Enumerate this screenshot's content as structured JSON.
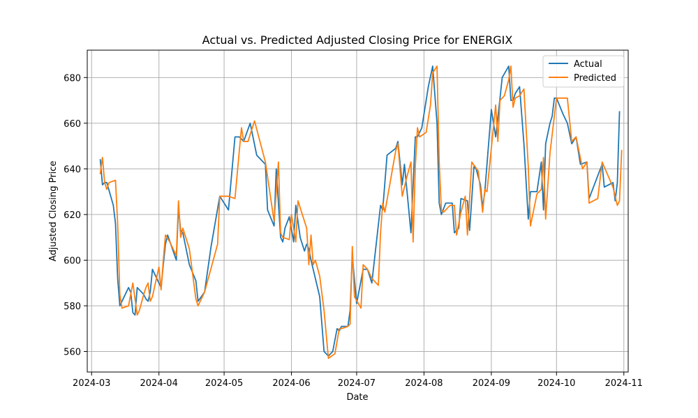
{
  "chart_data": {
    "type": "line",
    "title": "Actual vs. Predicted Adjusted Closing Price for ENERGIX",
    "xlabel": "Date",
    "ylabel": "Adjusted Closing Price",
    "x_range": [
      "2024-02-28",
      "2024-11-03"
    ],
    "y_range": [
      551,
      692
    ],
    "x_ticks": [
      "2024-03",
      "2024-04",
      "2024-05",
      "2024-06",
      "2024-07",
      "2024-08",
      "2024-09",
      "2024-10",
      "2024-11"
    ],
    "y_ticks": [
      560,
      580,
      600,
      620,
      640,
      660,
      680
    ],
    "grid": true,
    "legend_position": "top-right",
    "colors": {
      "Actual": "#1f77b4",
      "Predicted": "#ff7f0e",
      "grid": "#b0b0b0"
    },
    "series": [
      {
        "name": "Actual",
        "points": [
          [
            "2024-03-05",
            644
          ],
          [
            "2024-03-06",
            633
          ],
          [
            "2024-03-07",
            634
          ],
          [
            "2024-03-08",
            634
          ],
          [
            "2024-03-11",
            624
          ],
          [
            "2024-03-12",
            616
          ],
          [
            "2024-03-13",
            592
          ],
          [
            "2024-03-14",
            580
          ],
          [
            "2024-03-15",
            582
          ],
          [
            "2024-03-18",
            588
          ],
          [
            "2024-03-19",
            586
          ],
          [
            "2024-03-20",
            577
          ],
          [
            "2024-03-21",
            576
          ],
          [
            "2024-03-22",
            588
          ],
          [
            "2024-03-25",
            585
          ],
          [
            "2024-03-26",
            583
          ],
          [
            "2024-03-27",
            582
          ],
          [
            "2024-03-28",
            586
          ],
          [
            "2024-03-29",
            596
          ],
          [
            "2024-04-01",
            590
          ],
          [
            "2024-04-02",
            588
          ],
          [
            "2024-04-03",
            598
          ],
          [
            "2024-04-04",
            607
          ],
          [
            "2024-04-05",
            611
          ],
          [
            "2024-04-09",
            600
          ],
          [
            "2024-04-10",
            623
          ],
          [
            "2024-04-11",
            613
          ],
          [
            "2024-04-12",
            612
          ],
          [
            "2024-04-15",
            598
          ],
          [
            "2024-04-18",
            591
          ],
          [
            "2024-04-19",
            582
          ],
          [
            "2024-04-22",
            586
          ],
          [
            "2024-04-25",
            606
          ],
          [
            "2024-04-29",
            628
          ],
          [
            "2024-05-03",
            622
          ],
          [
            "2024-05-06",
            654
          ],
          [
            "2024-05-08",
            654
          ],
          [
            "2024-05-10",
            652
          ],
          [
            "2024-05-13",
            660
          ],
          [
            "2024-05-16",
            646
          ],
          [
            "2024-05-20",
            642
          ],
          [
            "2024-05-21",
            622
          ],
          [
            "2024-05-24",
            615
          ],
          [
            "2024-05-25",
            640
          ],
          [
            "2024-05-27",
            610
          ],
          [
            "2024-05-28",
            608
          ],
          [
            "2024-05-29",
            614
          ],
          [
            "2024-05-31",
            619
          ],
          [
            "2024-06-02",
            608
          ],
          [
            "2024-06-03",
            624
          ],
          [
            "2024-06-05",
            610
          ],
          [
            "2024-06-07",
            604
          ],
          [
            "2024-06-08",
            607
          ],
          [
            "2024-06-09",
            605
          ],
          [
            "2024-06-10",
            600
          ],
          [
            "2024-06-12",
            592
          ],
          [
            "2024-06-14",
            584
          ],
          [
            "2024-06-16",
            560
          ],
          [
            "2024-06-18",
            558
          ],
          [
            "2024-06-20",
            560
          ],
          [
            "2024-06-22",
            570
          ],
          [
            "2024-06-23",
            569
          ],
          [
            "2024-06-24",
            571
          ],
          [
            "2024-06-27",
            571
          ],
          [
            "2024-06-28",
            578
          ],
          [
            "2024-06-29",
            602
          ],
          [
            "2024-07-01",
            581
          ],
          [
            "2024-07-04",
            596
          ],
          [
            "2024-07-06",
            596
          ],
          [
            "2024-07-08",
            590
          ],
          [
            "2024-07-12",
            624
          ],
          [
            "2024-07-13",
            622
          ],
          [
            "2024-07-15",
            646
          ],
          [
            "2024-07-19",
            649
          ],
          [
            "2024-07-20",
            652
          ],
          [
            "2024-07-22",
            633
          ],
          [
            "2024-07-23",
            642
          ],
          [
            "2024-07-24",
            632
          ],
          [
            "2024-07-26",
            612
          ],
          [
            "2024-07-28",
            654
          ],
          [
            "2024-07-29",
            654
          ],
          [
            "2024-07-31",
            658
          ],
          [
            "2024-08-01",
            664
          ],
          [
            "2024-08-03",
            676
          ],
          [
            "2024-08-05",
            685
          ],
          [
            "2024-08-07",
            660
          ],
          [
            "2024-08-08",
            625
          ],
          [
            "2024-08-09",
            620
          ],
          [
            "2024-08-11",
            625
          ],
          [
            "2024-08-14",
            625
          ],
          [
            "2024-08-15",
            612
          ],
          [
            "2024-08-17",
            614
          ],
          [
            "2024-08-18",
            627
          ],
          [
            "2024-08-21",
            626
          ],
          [
            "2024-08-22",
            613
          ],
          [
            "2024-08-24",
            641
          ],
          [
            "2024-08-25",
            640
          ],
          [
            "2024-08-27",
            633
          ],
          [
            "2024-08-28",
            623
          ],
          [
            "2024-08-29",
            630
          ],
          [
            "2024-09-01",
            666
          ],
          [
            "2024-09-03",
            654
          ],
          [
            "2024-09-05",
            671
          ],
          [
            "2024-09-06",
            680
          ],
          [
            "2024-09-09",
            685
          ],
          [
            "2024-09-10",
            670
          ],
          [
            "2024-09-11",
            670
          ],
          [
            "2024-09-12",
            673
          ],
          [
            "2024-09-14",
            676
          ],
          [
            "2024-09-16",
            651
          ],
          [
            "2024-09-18",
            618
          ],
          [
            "2024-09-19",
            630
          ],
          [
            "2024-09-22",
            630
          ],
          [
            "2024-09-24",
            643
          ],
          [
            "2024-09-25",
            622
          ],
          [
            "2024-09-26",
            651
          ],
          [
            "2024-09-28",
            660
          ],
          [
            "2024-09-29",
            663
          ],
          [
            "2024-09-30",
            671
          ],
          [
            "2024-10-01",
            671
          ],
          [
            "2024-10-04",
            664
          ],
          [
            "2024-10-06",
            660
          ],
          [
            "2024-10-08",
            651
          ],
          [
            "2024-10-10",
            654
          ],
          [
            "2024-10-12",
            642
          ],
          [
            "2024-10-15",
            643
          ],
          [
            "2024-10-16",
            627
          ],
          [
            "2024-10-22",
            642
          ],
          [
            "2024-10-23",
            632
          ],
          [
            "2024-10-27",
            634
          ],
          [
            "2024-10-28",
            626
          ],
          [
            "2024-10-29",
            634
          ],
          [
            "2024-10-30",
            665
          ]
        ]
      },
      {
        "name": "Predicted",
        "points": [
          [
            "2024-03-05",
            638
          ],
          [
            "2024-03-06",
            645
          ],
          [
            "2024-03-07",
            634
          ],
          [
            "2024-03-08",
            631
          ],
          [
            "2024-03-09",
            634
          ],
          [
            "2024-03-12",
            635
          ],
          [
            "2024-03-13",
            616
          ],
          [
            "2024-03-14",
            585
          ],
          [
            "2024-03-15",
            579
          ],
          [
            "2024-03-18",
            580
          ],
          [
            "2024-03-19",
            585
          ],
          [
            "2024-03-20",
            590
          ],
          [
            "2024-03-21",
            583
          ],
          [
            "2024-03-22",
            576
          ],
          [
            "2024-03-23",
            578
          ],
          [
            "2024-03-25",
            585
          ],
          [
            "2024-03-26",
            588
          ],
          [
            "2024-03-27",
            590
          ],
          [
            "2024-03-28",
            582
          ],
          [
            "2024-03-29",
            584
          ],
          [
            "2024-04-01",
            597
          ],
          [
            "2024-04-02",
            587
          ],
          [
            "2024-04-03",
            600
          ],
          [
            "2024-04-04",
            611
          ],
          [
            "2024-04-06",
            608
          ],
          [
            "2024-04-09",
            602
          ],
          [
            "2024-04-10",
            626
          ],
          [
            "2024-04-11",
            610
          ],
          [
            "2024-04-12",
            614
          ],
          [
            "2024-04-15",
            605
          ],
          [
            "2024-04-18",
            583
          ],
          [
            "2024-04-19",
            580
          ],
          [
            "2024-04-22",
            586
          ],
          [
            "2024-04-28",
            607
          ],
          [
            "2024-04-29",
            628
          ],
          [
            "2024-05-03",
            628
          ],
          [
            "2024-05-06",
            627
          ],
          [
            "2024-05-08",
            648
          ],
          [
            "2024-05-09",
            658
          ],
          [
            "2024-05-10",
            652
          ],
          [
            "2024-05-12",
            652
          ],
          [
            "2024-05-15",
            661
          ],
          [
            "2024-05-20",
            643
          ],
          [
            "2024-05-24",
            617
          ],
          [
            "2024-05-26",
            643
          ],
          [
            "2024-05-27",
            612
          ],
          [
            "2024-05-28",
            610
          ],
          [
            "2024-05-31",
            609
          ],
          [
            "2024-06-01",
            620
          ],
          [
            "2024-06-03",
            608
          ],
          [
            "2024-06-04",
            626
          ],
          [
            "2024-06-08",
            614
          ],
          [
            "2024-06-09",
            598
          ],
          [
            "2024-06-10",
            611
          ],
          [
            "2024-06-11",
            598
          ],
          [
            "2024-06-12",
            600
          ],
          [
            "2024-06-14",
            593
          ],
          [
            "2024-06-16",
            578
          ],
          [
            "2024-06-18",
            557
          ],
          [
            "2024-06-21",
            559
          ],
          [
            "2024-06-23",
            570
          ],
          [
            "2024-06-24",
            570
          ],
          [
            "2024-06-27",
            571
          ],
          [
            "2024-06-28",
            572
          ],
          [
            "2024-06-29",
            606
          ],
          [
            "2024-06-30",
            584
          ],
          [
            "2024-07-03",
            579
          ],
          [
            "2024-07-04",
            598
          ],
          [
            "2024-07-06",
            596
          ],
          [
            "2024-07-08",
            592
          ],
          [
            "2024-07-11",
            589
          ],
          [
            "2024-07-12",
            612
          ],
          [
            "2024-07-13",
            625
          ],
          [
            "2024-07-14",
            621
          ],
          [
            "2024-07-19",
            648
          ],
          [
            "2024-07-20",
            651
          ],
          [
            "2024-07-22",
            628
          ],
          [
            "2024-07-24",
            636
          ],
          [
            "2024-07-26",
            643
          ],
          [
            "2024-07-27",
            608
          ],
          [
            "2024-07-28",
            641
          ],
          [
            "2024-07-29",
            658
          ],
          [
            "2024-07-30",
            654
          ],
          [
            "2024-08-02",
            656
          ],
          [
            "2024-08-04",
            668
          ],
          [
            "2024-08-05",
            682
          ],
          [
            "2024-08-07",
            685
          ],
          [
            "2024-08-08",
            643
          ],
          [
            "2024-08-09",
            622
          ],
          [
            "2024-08-10",
            621
          ],
          [
            "2024-08-13",
            624
          ],
          [
            "2024-08-15",
            624
          ],
          [
            "2024-08-16",
            611
          ],
          [
            "2024-08-18",
            621
          ],
          [
            "2024-08-20",
            628
          ],
          [
            "2024-08-21",
            611
          ],
          [
            "2024-08-23",
            643
          ],
          [
            "2024-08-26",
            639
          ],
          [
            "2024-08-28",
            621
          ],
          [
            "2024-08-29",
            631
          ],
          [
            "2024-08-30",
            630
          ],
          [
            "2024-09-01",
            649
          ],
          [
            "2024-09-03",
            668
          ],
          [
            "2024-09-04",
            652
          ],
          [
            "2024-09-05",
            670
          ],
          [
            "2024-09-07",
            672
          ],
          [
            "2024-09-09",
            679
          ],
          [
            "2024-09-10",
            685
          ],
          [
            "2024-09-11",
            667
          ],
          [
            "2024-09-12",
            671
          ],
          [
            "2024-09-14",
            672
          ],
          [
            "2024-09-16",
            675
          ],
          [
            "2024-09-18",
            641
          ],
          [
            "2024-09-19",
            615
          ],
          [
            "2024-09-22",
            629
          ],
          [
            "2024-09-24",
            631
          ],
          [
            "2024-09-25",
            645
          ],
          [
            "2024-09-26",
            618
          ],
          [
            "2024-09-28",
            647
          ],
          [
            "2024-09-30",
            663
          ],
          [
            "2024-10-01",
            671
          ],
          [
            "2024-10-06",
            671
          ],
          [
            "2024-10-08",
            652
          ],
          [
            "2024-10-10",
            654
          ],
          [
            "2024-10-13",
            640
          ],
          [
            "2024-10-15",
            643
          ],
          [
            "2024-10-16",
            625
          ],
          [
            "2024-10-20",
            627
          ],
          [
            "2024-10-22",
            643
          ],
          [
            "2024-10-27",
            632
          ],
          [
            "2024-10-29",
            624
          ],
          [
            "2024-10-30",
            626
          ],
          [
            "2024-10-31",
            648
          ]
        ]
      }
    ]
  }
}
